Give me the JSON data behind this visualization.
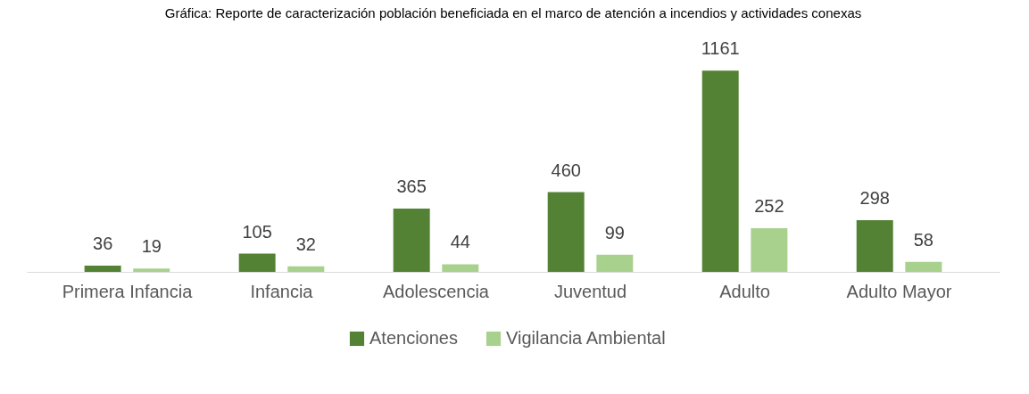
{
  "chart_data": {
    "type": "bar",
    "title": "Gráfica: Reporte de caracterización población beneficiada en el marco de atención a incendios y actividades conexas",
    "categories": [
      "Primera Infancia",
      "Infancia",
      "Adolescencia",
      "Juventud",
      "Adulto",
      "Adulto Mayor"
    ],
    "series": [
      {
        "name": "Atenciones",
        "color": "#548235",
        "values": [
          36,
          105,
          365,
          460,
          1161,
          298
        ]
      },
      {
        "name": "Vigilancia Ambiental",
        "color": "#a9d18e",
        "values": [
          19,
          32,
          44,
          99,
          252,
          58
        ]
      }
    ],
    "data_labels": true,
    "legend": "bottom",
    "grid": false
  }
}
